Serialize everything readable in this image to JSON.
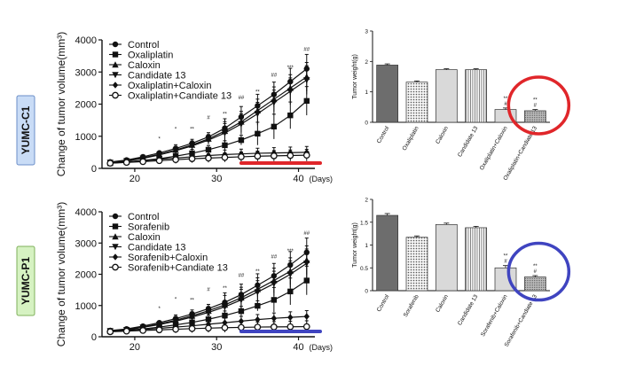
{
  "rows": [
    {
      "label": "YUMC-C1",
      "label_bg": "#c9dcf6",
      "label_border": "#6a8ec8"
    },
    {
      "label": "YUMC-P1",
      "label_bg": "#d6f2c2",
      "label_border": "#7fb05b"
    }
  ],
  "chart_data": [
    {
      "type": "line",
      "ylabel": "Change of tumor volume(mm³)",
      "xunit": "(Days)",
      "xticks": [
        20,
        30,
        40
      ],
      "yticks": [
        0,
        1000,
        2000,
        3000,
        4000
      ],
      "xlim": [
        16,
        42
      ],
      "ylim": [
        0,
        4000
      ],
      "highlight_color": "#e0262a",
      "x": [
        17,
        19,
        21,
        23,
        25,
        27,
        29,
        31,
        33,
        35,
        37,
        39,
        41
      ],
      "series": [
        {
          "name": "Control",
          "marker": "circle-filled",
          "values": [
            200,
            260,
            360,
            480,
            620,
            780,
            980,
            1250,
            1600,
            1950,
            2300,
            2700,
            3100
          ]
        },
        {
          "name": "Oxaliplatin",
          "marker": "square-filled",
          "values": [
            160,
            200,
            250,
            300,
            380,
            470,
            580,
            720,
            880,
            1080,
            1300,
            1650,
            2100
          ]
        },
        {
          "name": "Caloxin",
          "marker": "triangle-up",
          "values": [
            190,
            240,
            330,
            440,
            570,
            730,
            920,
            1160,
            1450,
            1800,
            2150,
            2500,
            2850
          ]
        },
        {
          "name": "Candidate 13",
          "marker": "triangle-down",
          "values": [
            180,
            230,
            310,
            420,
            550,
            700,
            880,
            1100,
            1380,
            1700,
            2050,
            2400,
            2750
          ]
        },
        {
          "name": "Oxaliplatin+Caloxin",
          "marker": "diamond-filled",
          "values": [
            170,
            200,
            240,
            280,
            320,
            360,
            400,
            430,
            450,
            470,
            480,
            490,
            500
          ]
        },
        {
          "name": "Oxaliplatin+Candiate 13",
          "marker": "circle-open",
          "values": [
            160,
            185,
            210,
            240,
            270,
            300,
            320,
            340,
            360,
            380,
            390,
            400,
            410
          ]
        }
      ],
      "sig_labels": [
        "*",
        "*",
        "**",
        "#",
        "**",
        "##",
        "**",
        "##",
        "***",
        "##"
      ]
    },
    {
      "type": "bar",
      "ylabel": "Tumor weight(g)",
      "ylim": [
        0,
        3
      ],
      "yticks": [
        0,
        1,
        2,
        3
      ],
      "categories": [
        "Control",
        "Oxaliplatin",
        "Caloxin",
        "Candidate 13",
        "Oxaliplatin+Caloxin",
        "Oxaliplatin+Candiate 13"
      ],
      "values": [
        1.88,
        1.32,
        1.73,
        1.73,
        0.42,
        0.38
      ],
      "errors": [
        0.04,
        0.04,
        0.03,
        0.03,
        0.05,
        0.04
      ],
      "patterns": [
        "dark",
        "dots",
        "light",
        "lines",
        "light",
        "dense"
      ],
      "sig_labels": [
        "**",
        "#",
        "**",
        "#"
      ],
      "highlight_color": "#e0262a"
    },
    {
      "type": "line",
      "ylabel": "Change of tumor volume(mm³)",
      "xunit": "(Days)",
      "xticks": [
        20,
        30,
        40
      ],
      "yticks": [
        0,
        1000,
        2000,
        3000,
        4000
      ],
      "xlim": [
        16,
        42
      ],
      "ylim": [
        0,
        4000
      ],
      "highlight_color": "#3f44c0",
      "x": [
        17,
        19,
        21,
        23,
        25,
        27,
        29,
        31,
        33,
        35,
        37,
        39,
        41
      ],
      "series": [
        {
          "name": "Control",
          "marker": "circle-filled",
          "values": [
            200,
            250,
            340,
            450,
            580,
            730,
            900,
            1100,
            1350,
            1650,
            1950,
            2300,
            2700
          ]
        },
        {
          "name": "Sorafenib",
          "marker": "square-filled",
          "values": [
            180,
            210,
            250,
            310,
            380,
            460,
            560,
            680,
            820,
            990,
            1180,
            1450,
            1800
          ]
        },
        {
          "name": "Caloxin",
          "marker": "triangle-up",
          "values": [
            190,
            230,
            310,
            410,
            530,
            670,
            830,
            1020,
            1250,
            1520,
            1800,
            2100,
            2450
          ]
        },
        {
          "name": "Candidate 13",
          "marker": "triangle-down",
          "values": [
            185,
            220,
            300,
            390,
            500,
            630,
            780,
            960,
            1180,
            1430,
            1700,
            2000,
            2350
          ]
        },
        {
          "name": "Sorafenib+Caloxin",
          "marker": "diamond-filled",
          "values": [
            170,
            200,
            230,
            270,
            310,
            350,
            400,
            450,
            500,
            550,
            590,
            620,
            650
          ]
        },
        {
          "name": "Sorafenib+Candiate 13",
          "marker": "circle-open",
          "values": [
            160,
            180,
            200,
            220,
            240,
            260,
            275,
            290,
            300,
            310,
            315,
            320,
            325
          ]
        }
      ],
      "sig_labels": [
        "*",
        "*",
        "**",
        "#",
        "**",
        "##",
        "**",
        "##",
        "***",
        "##"
      ]
    },
    {
      "type": "bar",
      "ylabel": "Tumor weight(g)",
      "ylim": [
        0,
        2
      ],
      "yticks": [
        0,
        0.5,
        1,
        1.5,
        2
      ],
      "categories": [
        "Control",
        "Sorafenib",
        "Caloxin",
        "Candidate 13",
        "Sorafenib+Caloxin",
        "Sorafenib+Candiate 13"
      ],
      "values": [
        1.65,
        1.17,
        1.45,
        1.38,
        0.5,
        0.3
      ],
      "errors": [
        0.04,
        0.03,
        0.03,
        0.03,
        0.05,
        0.03
      ],
      "patterns": [
        "dark",
        "dots",
        "light",
        "lines",
        "light",
        "dense"
      ],
      "sig_labels": [
        "**",
        "#",
        "**",
        "#"
      ],
      "highlight_color": "#3f44c0"
    }
  ]
}
